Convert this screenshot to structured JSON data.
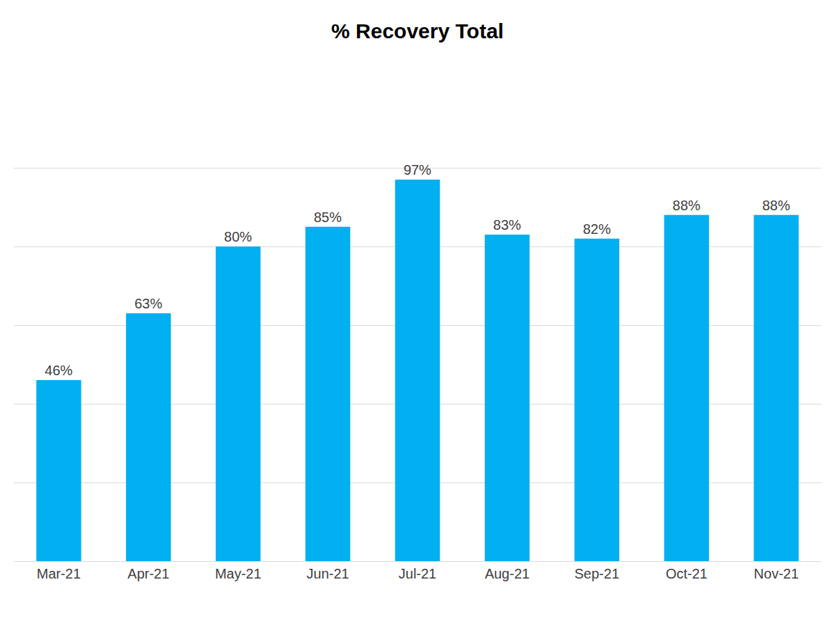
{
  "chart_data": {
    "type": "bar",
    "title": "% Recovery Total",
    "categories": [
      "Mar-21",
      "Apr-21",
      "May-21",
      "Jun-21",
      "Jul-21",
      "Aug-21",
      "Sep-21",
      "Oct-21",
      "Nov-21"
    ],
    "values": [
      46,
      63,
      80,
      85,
      97,
      83,
      82,
      88,
      88
    ],
    "value_labels": [
      "46%",
      "63%",
      "80%",
      "85%",
      "97%",
      "83%",
      "82%",
      "88%",
      "88%"
    ],
    "color": "#00b0f0",
    "ylim": [
      0,
      120
    ],
    "yticks": [
      0,
      20,
      40,
      60,
      80,
      100,
      120
    ],
    "grid": true,
    "data_labels": true,
    "tick_labels": "x"
  }
}
